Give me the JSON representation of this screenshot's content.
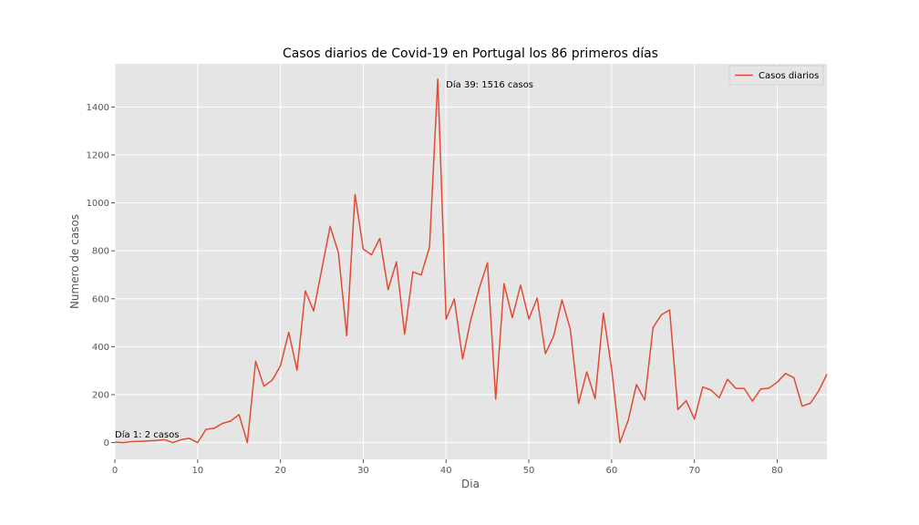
{
  "chart_data": {
    "type": "line",
    "title": "Casos diarios de Covid-19 en Portugal los 86 primeros días",
    "xlabel": "Dia",
    "ylabel": "Numero de casos",
    "xlim": [
      0,
      86
    ],
    "ylim": [
      -70,
      1580
    ],
    "xticks": [
      0,
      10,
      20,
      30,
      40,
      50,
      60,
      70,
      80
    ],
    "yticks": [
      0,
      200,
      400,
      600,
      800,
      1000,
      1200,
      1400
    ],
    "grid": true,
    "legend": {
      "position": "top-right"
    },
    "colors": {
      "line": "#e24a33",
      "plot_bg": "#e5e5e5",
      "grid": "#ffffff"
    },
    "series": [
      {
        "name": "Casos diarios",
        "x": [
          0,
          1,
          2,
          3,
          4,
          5,
          6,
          7,
          8,
          9,
          10,
          11,
          12,
          13,
          14,
          15,
          16,
          17,
          18,
          19,
          20,
          21,
          22,
          23,
          24,
          25,
          26,
          27,
          28,
          29,
          30,
          31,
          32,
          33,
          34,
          35,
          36,
          37,
          38,
          39,
          40,
          41,
          42,
          43,
          44,
          45,
          46,
          47,
          48,
          49,
          50,
          51,
          52,
          53,
          54,
          55,
          56,
          57,
          58,
          59,
          60,
          61,
          62,
          63,
          64,
          65,
          66,
          67,
          68,
          69,
          70,
          71,
          72,
          73,
          74,
          75,
          76,
          77,
          78,
          79,
          80,
          81,
          82,
          83,
          84,
          85,
          86
        ],
        "values": [
          2,
          0,
          4,
          5,
          7,
          9,
          12,
          0,
          12,
          18,
          0,
          55,
          60,
          80,
          90,
          117,
          0,
          339,
          235,
          260,
          320,
          460,
          302,
          633,
          549,
          724,
          902,
          792,
          446,
          1035,
          808,
          783,
          852,
          638,
          754,
          452,
          712,
          699,
          815,
          1516,
          515,
          599,
          349,
          514,
          643,
          750,
          181,
          663,
          521,
          657,
          516,
          603,
          371,
          444,
          595,
          474,
          163,
          295,
          183,
          540,
          306,
          0,
          92,
          242,
          178,
          480,
          533,
          553,
          138,
          175,
          98,
          232,
          219,
          187,
          264,
          226,
          226,
          173,
          223,
          227,
          252,
          288,
          271,
          152,
          164,
          215,
          285
        ]
      }
    ],
    "annotations": [
      {
        "text": "Día 1: 2 casos",
        "x": 0,
        "y": 2
      },
      {
        "text": "Día 39: 1516 casos",
        "x": 39,
        "y": 1516
      }
    ]
  }
}
